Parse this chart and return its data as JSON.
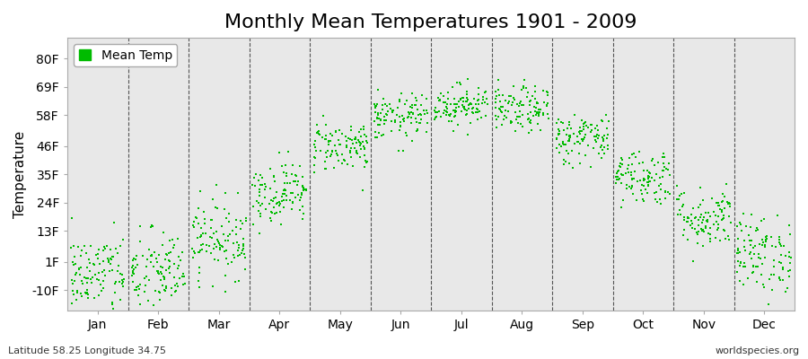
{
  "title": "Monthly Mean Temperatures 1901 - 2009",
  "ylabel": "Temperature",
  "xlabel_months": [
    "Jan",
    "Feb",
    "Mar",
    "Apr",
    "May",
    "Jun",
    "Jul",
    "Aug",
    "Sep",
    "Oct",
    "Nov",
    "Dec"
  ],
  "ytick_labels": [
    "-10F",
    "1F",
    "13F",
    "24F",
    "35F",
    "46F",
    "58F",
    "69F",
    "80F"
  ],
  "ytick_values": [
    -10,
    1,
    13,
    24,
    35,
    46,
    58,
    69,
    80
  ],
  "ylim": [
    -18,
    88
  ],
  "dot_color": "#00BB00",
  "background_color": "#E8E8E8",
  "title_fontsize": 16,
  "axis_fontsize": 11,
  "tick_fontsize": 10,
  "legend_label": "Mean Temp",
  "bottom_left": "Latitude 58.25 Longitude 34.75",
  "bottom_right": "worldspecies.org",
  "num_years": 109,
  "monthly_mean_F": [
    -4.0,
    -3.5,
    10.0,
    28.0,
    46.0,
    57.0,
    62.0,
    60.0,
    49.0,
    34.0,
    18.0,
    4.0
  ],
  "monthly_std_F": [
    8.0,
    8.5,
    7.5,
    6.0,
    5.0,
    4.5,
    4.0,
    4.5,
    5.0,
    5.5,
    6.0,
    7.5
  ],
  "seed": 42
}
